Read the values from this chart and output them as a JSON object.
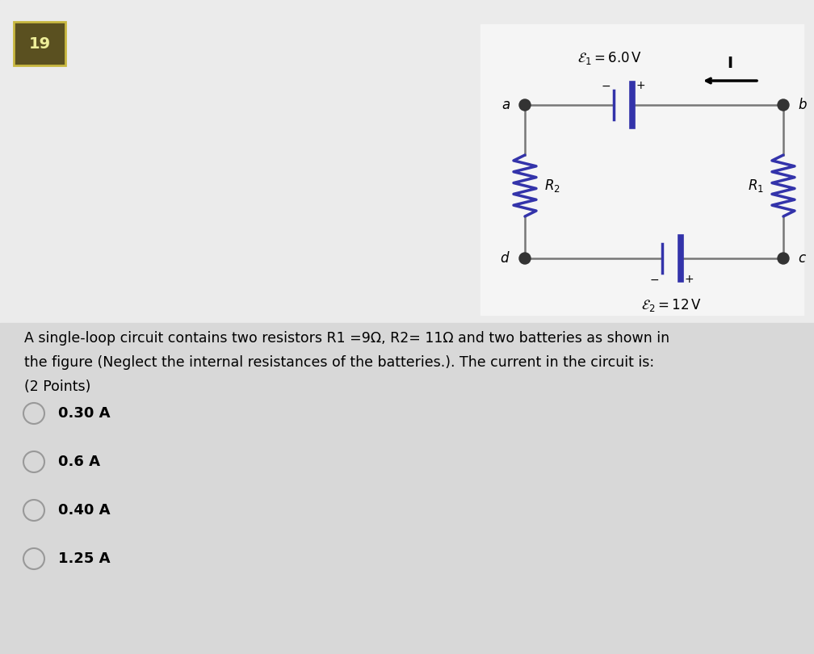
{
  "bg_top": "#e8e8e8",
  "bg_bottom": "#d8d8d8",
  "question_number": "19",
  "question_number_bg": "#5a5020",
  "question_number_border": "#c8b840",
  "question_text_line1": "A single-loop circuit contains two resistors R1 =9Ω, R2= 11Ω and two batteries as shown in",
  "question_text_line2": "the figure (Neglect the internal resistances of the batteries.). The current in the circuit is:",
  "question_text_line3": "(2 Points)",
  "choices": [
    "0.30 A",
    "0.6 A",
    "0.40 A",
    "1.25 A"
  ],
  "circuit_color": "#3333aa",
  "wire_color": "#777777",
  "E1_label": "$\\mathcal{E}_1 = 6.0\\,\\mathrm{V}$",
  "E2_label": "$\\mathcal{E}_2 = 12\\,\\mathrm{V}$",
  "R1_label": "$R_1$",
  "R2_label": "$R_2$",
  "I_label": "$I$",
  "node_a": "$a$",
  "node_b": "$b$",
  "node_c": "$c$",
  "node_d": "$d$"
}
